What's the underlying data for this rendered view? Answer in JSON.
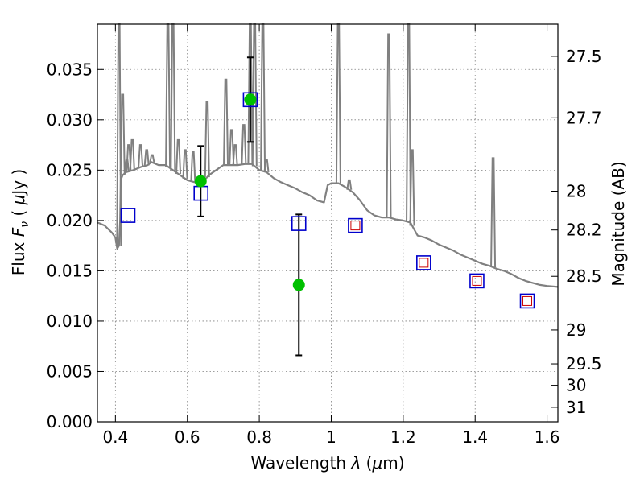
{
  "chart_data": {
    "type": "scatter",
    "title": "",
    "xlabel": "Wavelength  λ (μm)",
    "ylabel": "Flux  F_ν  ( μJy )",
    "y2label": "Magnitude (AB)",
    "xlim": [
      0.35,
      1.63
    ],
    "ylim": [
      0.0,
      0.0395
    ],
    "grid": true,
    "x_ticks": [
      0.4,
      0.6,
      0.8,
      1.0,
      1.2,
      1.4,
      1.6
    ],
    "x_tick_labels": [
      "0.4",
      "0.6",
      "0.8",
      "1",
      "1.2",
      "1.4",
      "1.6"
    ],
    "y_ticks": [
      0.0,
      0.005,
      0.01,
      0.015,
      0.02,
      0.025,
      0.03,
      0.035
    ],
    "y_tick_labels": [
      "0.000",
      "0.005",
      "0.010",
      "0.015",
      "0.020",
      "0.025",
      "0.030",
      "0.035"
    ],
    "y2_ticks": [
      27.5,
      27.7,
      28,
      28.2,
      28.5,
      29,
      29.5,
      30,
      31
    ],
    "y2_tick_labels": [
      "27.5",
      "27.7",
      "28",
      "28.2",
      "28.5",
      "29",
      "29.5",
      "30",
      "31"
    ],
    "colors": {
      "spectrum": "#808080",
      "observed": "#00c000",
      "model_box": "#0000cc",
      "model_inner": "#cc0000",
      "grid": "#7f7f7f"
    },
    "series": [
      {
        "type": "line",
        "points": [
          [
            0.35,
            0.0198
          ],
          [
            0.37,
            0.0195
          ],
          [
            0.39,
            0.0188
          ],
          [
            0.4,
            0.0183
          ],
          [
            0.405,
            0.0172
          ],
          [
            0.41,
            0.0175
          ],
          [
            0.413,
            0.02
          ],
          [
            0.415,
            0.024
          ],
          [
            0.42,
            0.0245
          ],
          [
            0.43,
            0.0248
          ],
          [
            0.45,
            0.025
          ],
          [
            0.47,
            0.0253
          ],
          [
            0.49,
            0.0255
          ],
          [
            0.5,
            0.0258
          ],
          [
            0.52,
            0.0255
          ],
          [
            0.54,
            0.0255
          ],
          [
            0.56,
            0.025
          ],
          [
            0.58,
            0.0245
          ],
          [
            0.6,
            0.024
          ],
          [
            0.62,
            0.0238
          ],
          [
            0.64,
            0.0237
          ],
          [
            0.66,
            0.0245
          ],
          [
            0.68,
            0.025
          ],
          [
            0.7,
            0.0255
          ],
          [
            0.72,
            0.0255
          ],
          [
            0.74,
            0.0255
          ],
          [
            0.76,
            0.0256
          ],
          [
            0.78,
            0.0256
          ],
          [
            0.8,
            0.025
          ],
          [
            0.82,
            0.0248
          ],
          [
            0.84,
            0.0242
          ],
          [
            0.86,
            0.0238
          ],
          [
            0.88,
            0.0235
          ],
          [
            0.9,
            0.0232
          ],
          [
            0.92,
            0.0228
          ],
          [
            0.94,
            0.0225
          ],
          [
            0.96,
            0.022
          ],
          [
            0.98,
            0.0218
          ],
          [
            0.99,
            0.0235
          ],
          [
            1.0,
            0.0237
          ],
          [
            1.02,
            0.0237
          ],
          [
            1.04,
            0.0233
          ],
          [
            1.06,
            0.0228
          ],
          [
            1.08,
            0.022
          ],
          [
            1.1,
            0.021
          ],
          [
            1.12,
            0.0205
          ],
          [
            1.14,
            0.0203
          ],
          [
            1.16,
            0.0203
          ],
          [
            1.18,
            0.0201
          ],
          [
            1.2,
            0.02
          ],
          [
            1.22,
            0.0198
          ],
          [
            1.24,
            0.0185
          ],
          [
            1.26,
            0.0183
          ],
          [
            1.28,
            0.018
          ],
          [
            1.3,
            0.0176
          ],
          [
            1.32,
            0.0173
          ],
          [
            1.34,
            0.017
          ],
          [
            1.36,
            0.0166
          ],
          [
            1.38,
            0.0163
          ],
          [
            1.4,
            0.016
          ],
          [
            1.42,
            0.0157
          ],
          [
            1.44,
            0.0155
          ],
          [
            1.46,
            0.0152
          ],
          [
            1.48,
            0.015
          ],
          [
            1.5,
            0.0147
          ],
          [
            1.52,
            0.0143
          ],
          [
            1.54,
            0.014
          ],
          [
            1.56,
            0.0138
          ],
          [
            1.58,
            0.0136
          ],
          [
            1.6,
            0.0135
          ],
          [
            1.63,
            0.0134
          ]
        ]
      },
      {
        "type": "scatter",
        "points": [
          {
            "x": 0.637,
            "y": 0.0239,
            "yerr_low": 0.0035,
            "yerr_high": 0.0035
          },
          {
            "x": 0.775,
            "y": 0.032,
            "yerr_low": 0.0042,
            "yerr_high": 0.0042
          },
          {
            "x": 0.91,
            "y": 0.0136,
            "yerr_low": 0.007,
            "yerr_high": 0.007
          }
        ]
      },
      {
        "type": "scatter",
        "points": [
          {
            "x": 0.435,
            "y": 0.0205
          },
          {
            "x": 0.638,
            "y": 0.0227
          },
          {
            "x": 0.775,
            "y": 0.032
          },
          {
            "x": 0.91,
            "y": 0.0197
          },
          {
            "x": 1.067,
            "y": 0.0195
          },
          {
            "x": 1.257,
            "y": 0.0158
          },
          {
            "x": 1.405,
            "y": 0.014
          },
          {
            "x": 1.545,
            "y": 0.012
          }
        ]
      },
      {
        "type": "scatter",
        "points": [
          {
            "x": 1.067,
            "y": 0.0195
          },
          {
            "x": 1.257,
            "y": 0.0158
          },
          {
            "x": 1.405,
            "y": 0.014
          },
          {
            "x": 1.545,
            "y": 0.012
          }
        ]
      }
    ]
  }
}
